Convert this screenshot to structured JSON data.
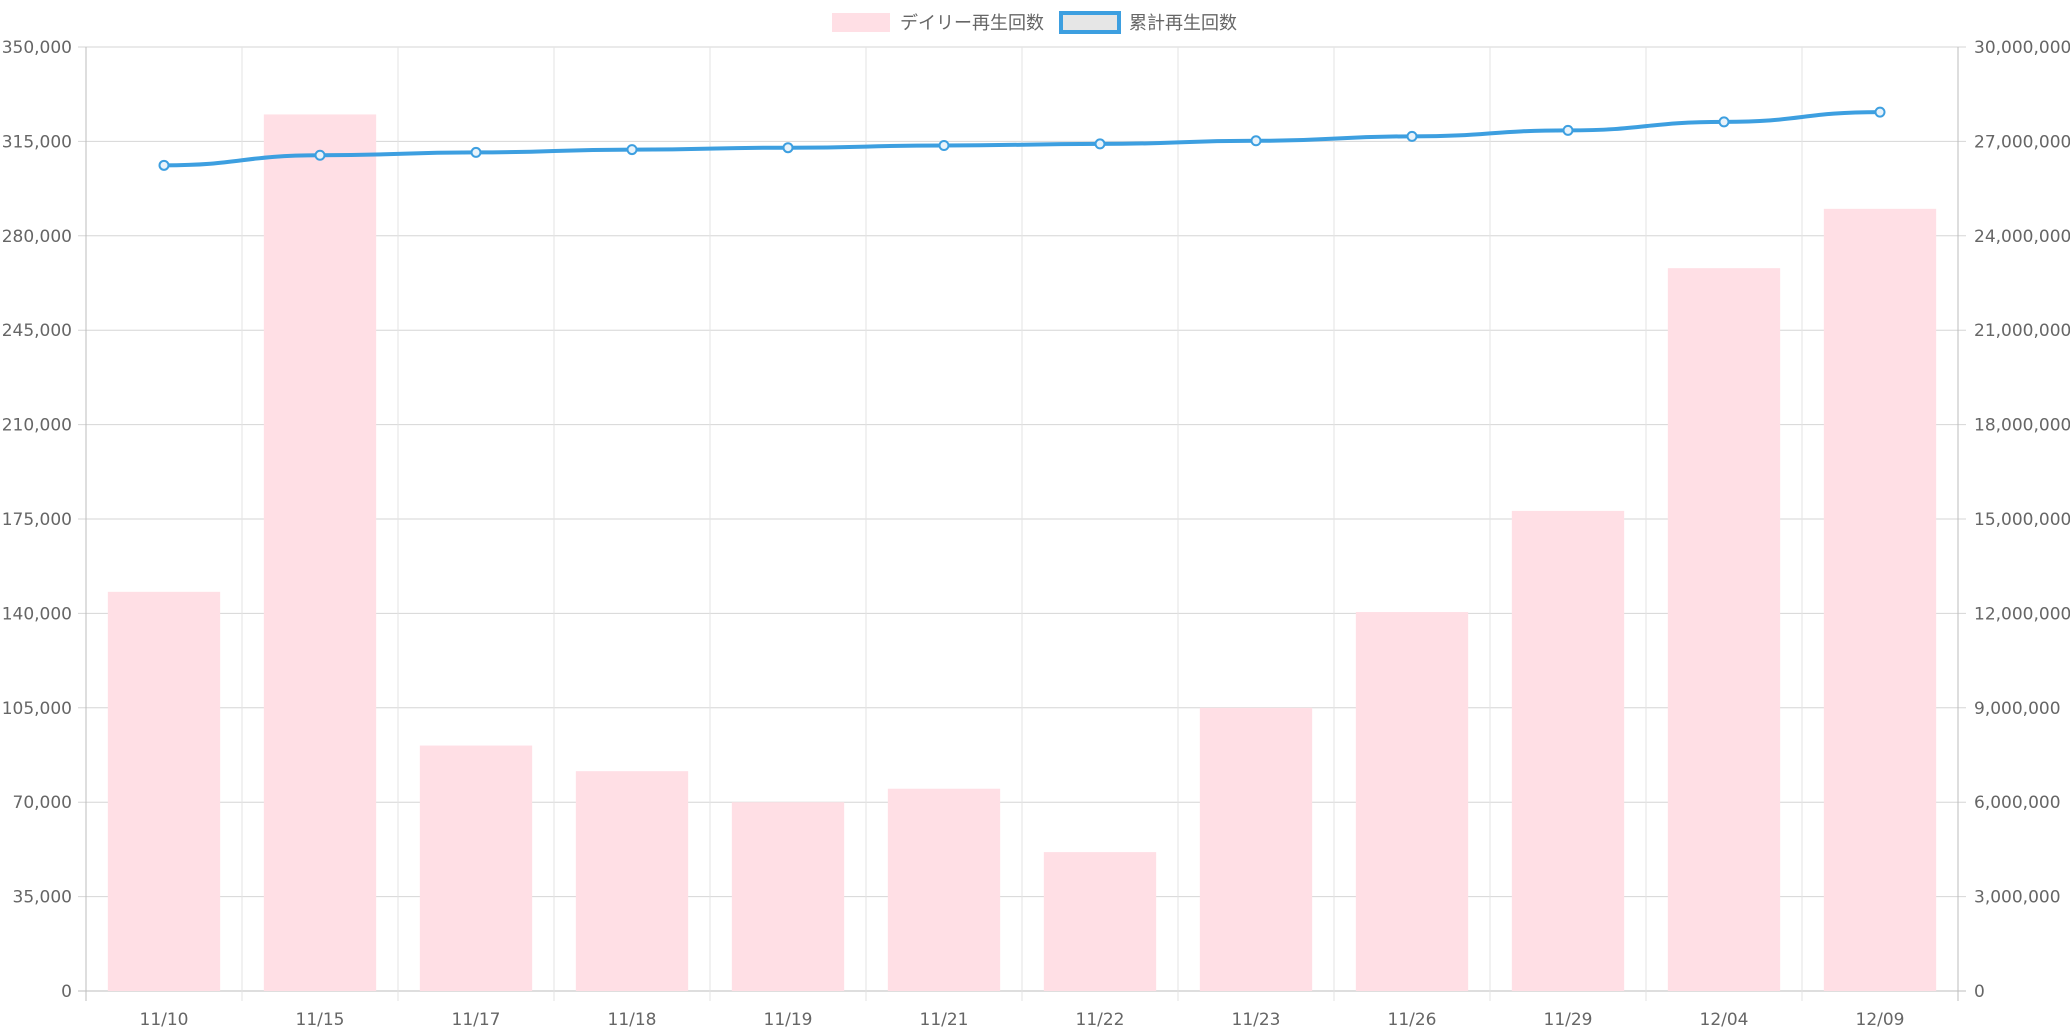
{
  "chart_data": {
    "type": "bar",
    "categories": [
      "11/10",
      "11/15",
      "11/17",
      "11/18",
      "11/19",
      "11/21",
      "11/22",
      "11/23",
      "11/26",
      "11/29",
      "12/04",
      "12/09"
    ],
    "series": [
      {
        "name": "デイリー再生回数",
        "type": "bar",
        "axis": "left",
        "color": "#ffdfe5",
        "values": [
          148000,
          325000,
          91000,
          81500,
          70000,
          75000,
          51500,
          105000,
          140500,
          178000,
          268000,
          290000
        ]
      },
      {
        "name": "累計再生回数",
        "type": "line",
        "axis": "right",
        "color": "#3d9fe0",
        "values": [
          26240000,
          26560000,
          26650000,
          26740000,
          26800000,
          26870000,
          26920000,
          27020000,
          27160000,
          27350000,
          27620000,
          27930000
        ]
      }
    ],
    "y_left": {
      "min": 0,
      "max": 350000,
      "ticks": [
        "0",
        "35,000",
        "70,000",
        "105,000",
        "140,000",
        "175,000",
        "210,000",
        "245,000",
        "280,000",
        "315,000",
        "350,000"
      ]
    },
    "y_right": {
      "min": 0,
      "max": 30000000,
      "ticks": [
        "0",
        "3,000,000",
        "6,000,000",
        "9,000,000",
        "12,000,000",
        "15,000,000",
        "18,000,000",
        "21,000,000",
        "24,000,000",
        "27,000,000",
        "30,000,000"
      ]
    },
    "grid": true,
    "legend": "top-center",
    "title": "",
    "xlabel": "",
    "ylabel": ""
  }
}
